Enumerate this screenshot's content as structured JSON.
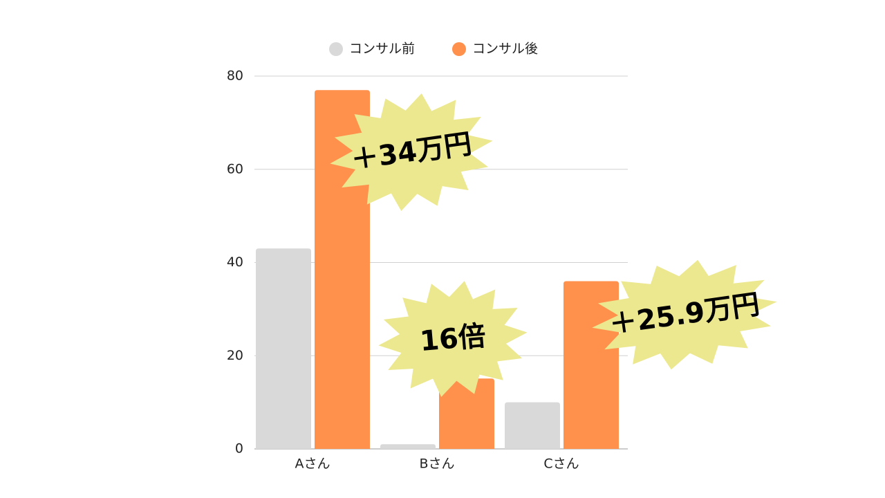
{
  "chart_data": {
    "type": "bar",
    "categories": [
      "Aさん",
      "Bさん",
      "Cさん"
    ],
    "series": [
      {
        "name": "コンサル前",
        "color": "#d9d9d9",
        "values": [
          43,
          1,
          10
        ]
      },
      {
        "name": "コンサル後",
        "color": "#ff914d",
        "values": [
          77,
          15.1,
          36
        ]
      }
    ],
    "ylim": [
      0,
      80
    ],
    "yticks": [
      0,
      20,
      40,
      60,
      80
    ],
    "grid": true,
    "annotations": [
      "＋34万円",
      "16倍",
      "＋25.9万円"
    ],
    "annotation_color": "#ece88f"
  }
}
